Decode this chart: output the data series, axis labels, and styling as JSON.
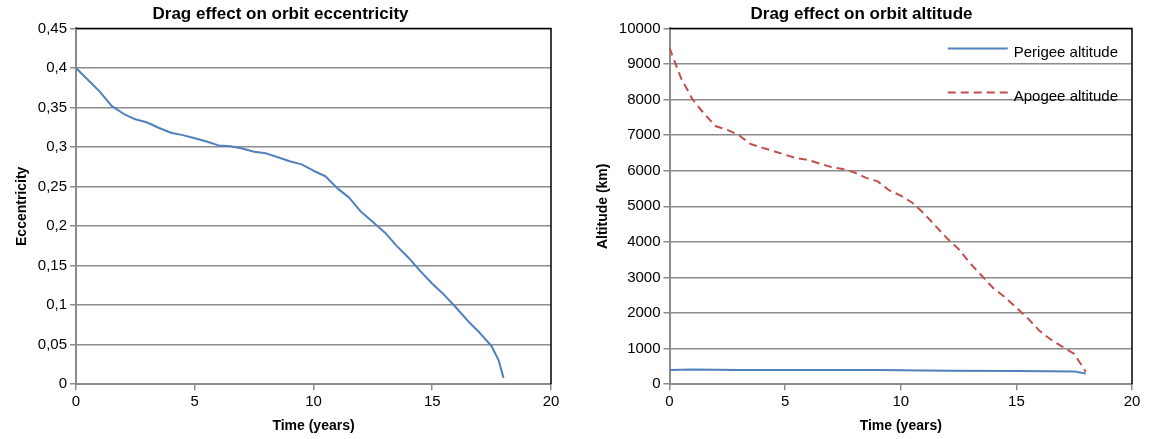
{
  "chart_data": [
    {
      "type": "line",
      "title": "Drag effect on orbit eccentricity",
      "xlabel": "Time (years)",
      "ylabel": "Eccentricity",
      "xlim": [
        0,
        20
      ],
      "xticks": [
        0,
        5,
        10,
        15,
        20
      ],
      "ylim": [
        0,
        0.45
      ],
      "yticks": [
        0,
        {
          "value": 0.05,
          "label": "0,05"
        },
        {
          "value": 0.1,
          "label": "0,1"
        },
        {
          "value": 0.15,
          "label": "0,15"
        },
        {
          "value": 0.2,
          "label": "0,2"
        },
        {
          "value": 0.25,
          "label": "0,25"
        },
        {
          "value": 0.3,
          "label": "0,3"
        },
        {
          "value": 0.35,
          "label": "0,35"
        },
        {
          "value": 0.4,
          "label": "0,4"
        },
        {
          "value": 0.45,
          "label": "0,45"
        }
      ],
      "grid": "y",
      "legend": false,
      "marker": "none",
      "series": [
        {
          "color": "#4f81bd",
          "line_style": "solid",
          "x": [
            0,
            0.5,
            1,
            1.5,
            2,
            2.5,
            3,
            3.5,
            4,
            4.5,
            5,
            5.5,
            6,
            6.5,
            7,
            7.5,
            8,
            8.5,
            9,
            9.5,
            10,
            10.5,
            11,
            11.5,
            12,
            12.5,
            13,
            13.5,
            14,
            14.5,
            15,
            15.5,
            16,
            16.5,
            17,
            17.5,
            17.8,
            18
          ],
          "values": [
            0.4,
            0.385,
            0.37,
            0.352,
            0.342,
            0.335,
            0.331,
            0.324,
            0.318,
            0.315,
            0.311,
            0.307,
            0.302,
            0.301,
            0.298,
            0.294,
            0.292,
            0.287,
            0.282,
            0.278,
            0.27,
            0.263,
            0.248,
            0.236,
            0.218,
            0.205,
            0.192,
            0.175,
            0.16,
            0.143,
            0.127,
            0.113,
            0.097,
            0.08,
            0.065,
            0.048,
            0.03,
            0.008
          ]
        }
      ]
    },
    {
      "type": "line",
      "title": "Drag effect on orbit altitude",
      "xlabel": "Time (years)",
      "ylabel": "Altitude (km)",
      "xlim": [
        0,
        20
      ],
      "xticks": [
        0,
        5,
        10,
        15,
        20
      ],
      "ylim": [
        0,
        10000
      ],
      "yticks": [
        0,
        1000,
        2000,
        3000,
        4000,
        5000,
        6000,
        7000,
        8000,
        9000,
        10000
      ],
      "grid": "y",
      "legend": "top right",
      "marker": "none",
      "series": [
        {
          "name": "Perigee altitude",
          "color": "#4f81bd",
          "line_style": "solid",
          "x": [
            0,
            1,
            3,
            6,
            9,
            12,
            15,
            17.5,
            18
          ],
          "values": [
            400,
            410,
            400,
            400,
            400,
            380,
            370,
            360,
            300
          ]
        },
        {
          "name": "Apogee altitude",
          "color": "#c0504d",
          "line_style": "dashed",
          "x": [
            0,
            0.5,
            1,
            1.5,
            2,
            2.5,
            3,
            3.5,
            4,
            4.5,
            5,
            5.5,
            6,
            6.5,
            7,
            7.5,
            8,
            8.5,
            9,
            9.5,
            10,
            10.5,
            11,
            11.5,
            12,
            12.5,
            13,
            13.5,
            14,
            14.5,
            15,
            15.5,
            16,
            16.5,
            17,
            17.5,
            18
          ],
          "values": [
            9450,
            8600,
            8000,
            7600,
            7250,
            7150,
            7000,
            6750,
            6650,
            6550,
            6450,
            6350,
            6300,
            6200,
            6100,
            6050,
            5950,
            5800,
            5700,
            5450,
            5300,
            5100,
            4800,
            4450,
            4100,
            3800,
            3400,
            3050,
            2700,
            2450,
            2150,
            1850,
            1500,
            1250,
            1050,
            850,
            350
          ]
        }
      ]
    }
  ]
}
